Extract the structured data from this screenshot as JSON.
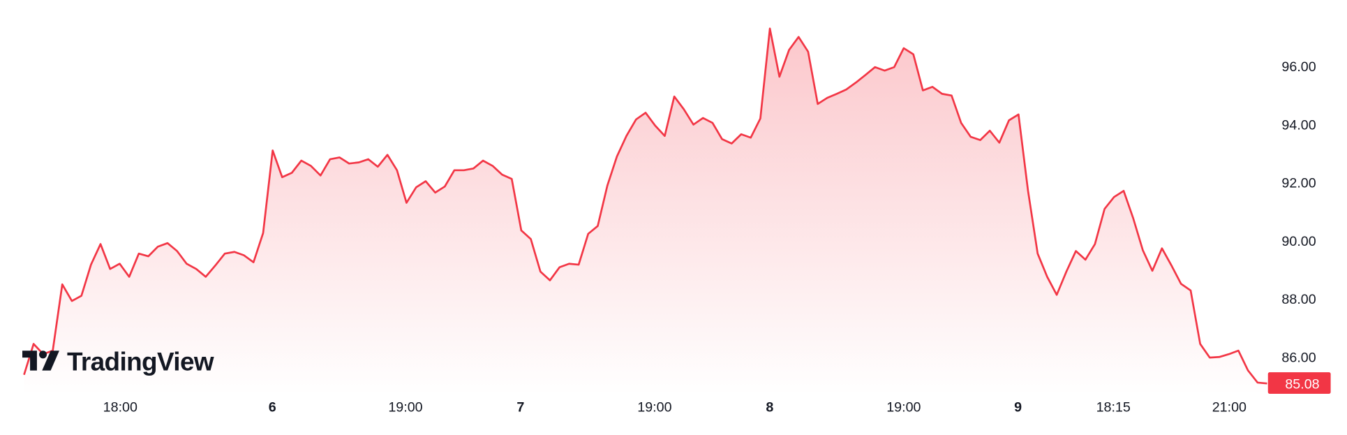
{
  "chart_data": {
    "type": "area",
    "title": "",
    "xlabel": "",
    "ylabel": "",
    "x_tick_labels": [
      {
        "label": "18:00",
        "bold": false
      },
      {
        "label": "6",
        "bold": true
      },
      {
        "label": "19:00",
        "bold": false
      },
      {
        "label": "7",
        "bold": true
      },
      {
        "label": "19:00",
        "bold": false
      },
      {
        "label": "8",
        "bold": true
      },
      {
        "label": "19:00",
        "bold": false
      },
      {
        "label": "9",
        "bold": true
      },
      {
        "label": "18:15",
        "bold": false
      },
      {
        "label": "21:00",
        "bold": false
      }
    ],
    "y_tick_labels": [
      "96.00",
      "94.00",
      "92.00",
      "90.00",
      "88.00",
      "86.00"
    ],
    "y_ticks": [
      96,
      94,
      92,
      90,
      88,
      86
    ],
    "ylim": [
      84.1,
      98.3
    ],
    "grid": false,
    "axis_position": "right",
    "last_price": {
      "label": "85.08",
      "value": 85.08
    },
    "colors": {
      "line": "#F23645",
      "fill": "#F23645",
      "badge": "#F23645",
      "text": "#131722"
    },
    "series": [
      {
        "values": [
          85.38,
          86.44,
          86.09,
          86.21,
          88.49,
          87.92,
          88.1,
          89.17,
          89.88,
          89.02,
          89.2,
          88.75,
          89.55,
          89.46,
          89.79,
          89.91,
          89.64,
          89.2,
          89.02,
          88.75,
          89.14,
          89.55,
          89.61,
          89.49,
          89.25,
          90.26,
          93.1,
          92.18,
          92.33,
          92.75,
          92.57,
          92.24,
          92.8,
          92.86,
          92.65,
          92.69,
          92.8,
          92.54,
          92.95,
          92.42,
          91.3,
          91.83,
          92.04,
          91.65,
          91.86,
          92.42,
          92.42,
          92.48,
          92.75,
          92.57,
          92.27,
          92.12,
          90.35,
          90.05,
          88.93,
          88.63,
          89.08,
          89.2,
          89.17,
          90.23,
          90.5,
          91.89,
          92.89,
          93.6,
          94.17,
          94.4,
          93.96,
          93.6,
          94.96,
          94.52,
          93.99,
          94.22,
          94.05,
          93.49,
          93.34,
          93.66,
          93.54,
          94.2,
          97.3,
          95.64,
          96.56,
          97.01,
          96.5,
          94.7,
          94.91,
          95.05,
          95.2,
          95.44,
          95.7,
          95.97,
          95.85,
          95.97,
          96.62,
          96.41,
          95.17,
          95.29,
          95.05,
          94.99,
          94.05,
          93.57,
          93.46,
          93.78,
          93.37,
          94.14,
          94.34,
          91.71,
          89.55,
          88.75,
          88.13,
          88.93,
          89.64,
          89.34,
          89.88,
          91.09,
          91.5,
          91.71,
          90.76,
          89.67,
          88.96,
          89.73,
          89.14,
          88.51,
          88.28,
          86.44,
          85.97,
          85.99,
          86.09,
          86.21,
          85.53,
          85.11,
          85.08
        ]
      }
    ]
  },
  "logo": {
    "text": "TradingView"
  }
}
